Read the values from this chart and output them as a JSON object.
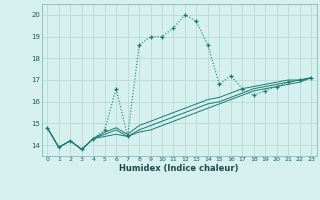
{
  "xlabel": "Humidex (Indice chaleur)",
  "background_color": "#d6f0ef",
  "grid_color": "#b8dbd8",
  "line_color": "#1a7a6e",
  "xlim": [
    -0.5,
    23.5
  ],
  "ylim": [
    13.5,
    20.5
  ],
  "xticks": [
    0,
    1,
    2,
    3,
    4,
    5,
    6,
    7,
    8,
    9,
    10,
    11,
    12,
    13,
    14,
    15,
    16,
    17,
    18,
    19,
    20,
    21,
    22,
    23
  ],
  "yticks": [
    14,
    15,
    16,
    17,
    18,
    19,
    20
  ],
  "series1_x": [
    0,
    1,
    2,
    3,
    4,
    5,
    6,
    7,
    8,
    9,
    10,
    11,
    12,
    13,
    14,
    15,
    16,
    17,
    18,
    19,
    20,
    21,
    22,
    23
  ],
  "series1_y": [
    14.8,
    13.9,
    14.2,
    13.8,
    14.3,
    14.7,
    16.6,
    14.4,
    18.6,
    19.0,
    19.0,
    19.4,
    20.0,
    19.7,
    18.6,
    16.8,
    17.2,
    16.6,
    16.3,
    16.5,
    16.7,
    16.9,
    17.0,
    17.1
  ],
  "series2_x": [
    0,
    1,
    2,
    3,
    4,
    5,
    6,
    7,
    8,
    9,
    10,
    11,
    12,
    13,
    14,
    15,
    16,
    17,
    18,
    19,
    20,
    21,
    22,
    23
  ],
  "series2_y": [
    14.8,
    13.9,
    14.2,
    13.8,
    14.3,
    14.6,
    14.8,
    14.5,
    14.9,
    15.1,
    15.3,
    15.5,
    15.7,
    15.9,
    16.1,
    16.2,
    16.4,
    16.6,
    16.7,
    16.8,
    16.9,
    17.0,
    17.0,
    17.1
  ],
  "series3_x": [
    0,
    1,
    2,
    3,
    4,
    5,
    6,
    7,
    8,
    9,
    10,
    11,
    12,
    13,
    14,
    15,
    16,
    17,
    18,
    19,
    20,
    21,
    22,
    23
  ],
  "series3_y": [
    14.8,
    13.9,
    14.2,
    13.8,
    14.3,
    14.5,
    14.7,
    14.4,
    14.7,
    14.9,
    15.1,
    15.3,
    15.5,
    15.7,
    15.9,
    16.0,
    16.2,
    16.4,
    16.6,
    16.7,
    16.8,
    16.9,
    17.0,
    17.1
  ],
  "series4_x": [
    0,
    1,
    2,
    3,
    4,
    5,
    6,
    7,
    8,
    9,
    10,
    11,
    12,
    13,
    14,
    15,
    16,
    17,
    18,
    19,
    20,
    21,
    22,
    23
  ],
  "series4_y": [
    14.8,
    13.9,
    14.2,
    13.8,
    14.3,
    14.4,
    14.5,
    14.4,
    14.6,
    14.7,
    14.9,
    15.1,
    15.3,
    15.5,
    15.7,
    15.9,
    16.1,
    16.3,
    16.5,
    16.6,
    16.7,
    16.8,
    16.9,
    17.1
  ]
}
